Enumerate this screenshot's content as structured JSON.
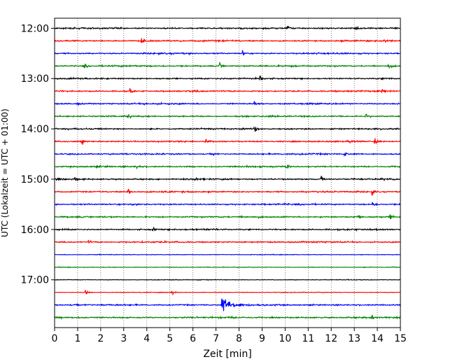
{
  "chart_data": {
    "type": "line",
    "title": "",
    "xlabel": "Zeit  [min]",
    "ylabel": "UTC (Lokalzeit = UTC + 01:00)",
    "xlim": [
      0,
      15
    ],
    "x_ticks": [
      "0",
      "1",
      "2",
      "3",
      "4",
      "5",
      "6",
      "7",
      "8",
      "9",
      "10",
      "11",
      "12",
      "13",
      "14",
      "15"
    ],
    "y_ticks": [
      "12:00",
      "13:00",
      "14:00",
      "15:00",
      "16:00",
      "17:00"
    ],
    "trace_interval_minutes": 15,
    "start_time": "12:00",
    "end_time": "17:45",
    "grid": "vertical dotted",
    "color_cycle": [
      "#000000",
      "#ff0000",
      "#0000ff",
      "#008000"
    ],
    "events": [
      {
        "trace": "12:00",
        "minute": 10.1,
        "amp": 1.0
      },
      {
        "trace": "12:00",
        "minute": 13.1,
        "amp": 0.5
      },
      {
        "trace": "12:15",
        "minute": 3.8,
        "amp": 1.0
      },
      {
        "trace": "12:15",
        "minute": 14.3,
        "amp": 0.8
      },
      {
        "trace": "12:30",
        "minute": 8.2,
        "amp": 0.8
      },
      {
        "trace": "12:45",
        "minute": 1.3,
        "amp": 0.8
      },
      {
        "trace": "12:45",
        "minute": 7.2,
        "amp": 0.9
      },
      {
        "trace": "12:45",
        "minute": 14.5,
        "amp": 1.0
      },
      {
        "trace": "13:00",
        "minute": 8.9,
        "amp": 0.8
      },
      {
        "trace": "13:15",
        "minute": 3.3,
        "amp": 0.7
      },
      {
        "trace": "13:15",
        "minute": 14.2,
        "amp": 0.8
      },
      {
        "trace": "13:30",
        "minute": 1.0,
        "amp": 0.6
      },
      {
        "trace": "13:30",
        "minute": 8.7,
        "amp": 1.0
      },
      {
        "trace": "13:45",
        "minute": 3.2,
        "amp": 0.7
      },
      {
        "trace": "13:45",
        "minute": 13.5,
        "amp": 0.8
      },
      {
        "trace": "14:00",
        "minute": 8.7,
        "amp": 0.9
      },
      {
        "trace": "14:15",
        "minute": 1.2,
        "amp": 0.8
      },
      {
        "trace": "14:15",
        "minute": 6.6,
        "amp": 0.9
      },
      {
        "trace": "14:15",
        "minute": 13.9,
        "amp": 0.8
      },
      {
        "trace": "14:30",
        "minute": 6.9,
        "amp": 0.5
      },
      {
        "trace": "14:30",
        "minute": 12.6,
        "amp": 0.8
      },
      {
        "trace": "14:45",
        "minute": 3.6,
        "amp": 0.6
      },
      {
        "trace": "14:45",
        "minute": 10.1,
        "amp": 0.8
      },
      {
        "trace": "15:00",
        "minute": 0.9,
        "amp": 0.8
      },
      {
        "trace": "15:00",
        "minute": 6.1,
        "amp": 1.0
      },
      {
        "trace": "15:00",
        "minute": 11.6,
        "amp": 0.6
      },
      {
        "trace": "15:15",
        "minute": 3.2,
        "amp": 0.9
      },
      {
        "trace": "15:15",
        "minute": 13.8,
        "amp": 0.8
      },
      {
        "trace": "15:30",
        "minute": 13.8,
        "amp": 0.8
      },
      {
        "trace": "15:45",
        "minute": 13.2,
        "amp": 1.0
      },
      {
        "trace": "15:45",
        "minute": 14.6,
        "amp": 0.6
      },
      {
        "trace": "16:00",
        "minute": 4.3,
        "amp": 0.5
      },
      {
        "trace": "16:15",
        "minute": 1.5,
        "amp": 0.4
      },
      {
        "trace": "17:15",
        "minute": 1.35,
        "amp": 1.0
      },
      {
        "trace": "17:15",
        "minute": 5.1,
        "amp": 0.7
      },
      {
        "trace": "17:30",
        "minute": 7.3,
        "amp": 2.2
      },
      {
        "trace": "17:45",
        "minute": 13.8,
        "amp": 0.7
      }
    ]
  }
}
